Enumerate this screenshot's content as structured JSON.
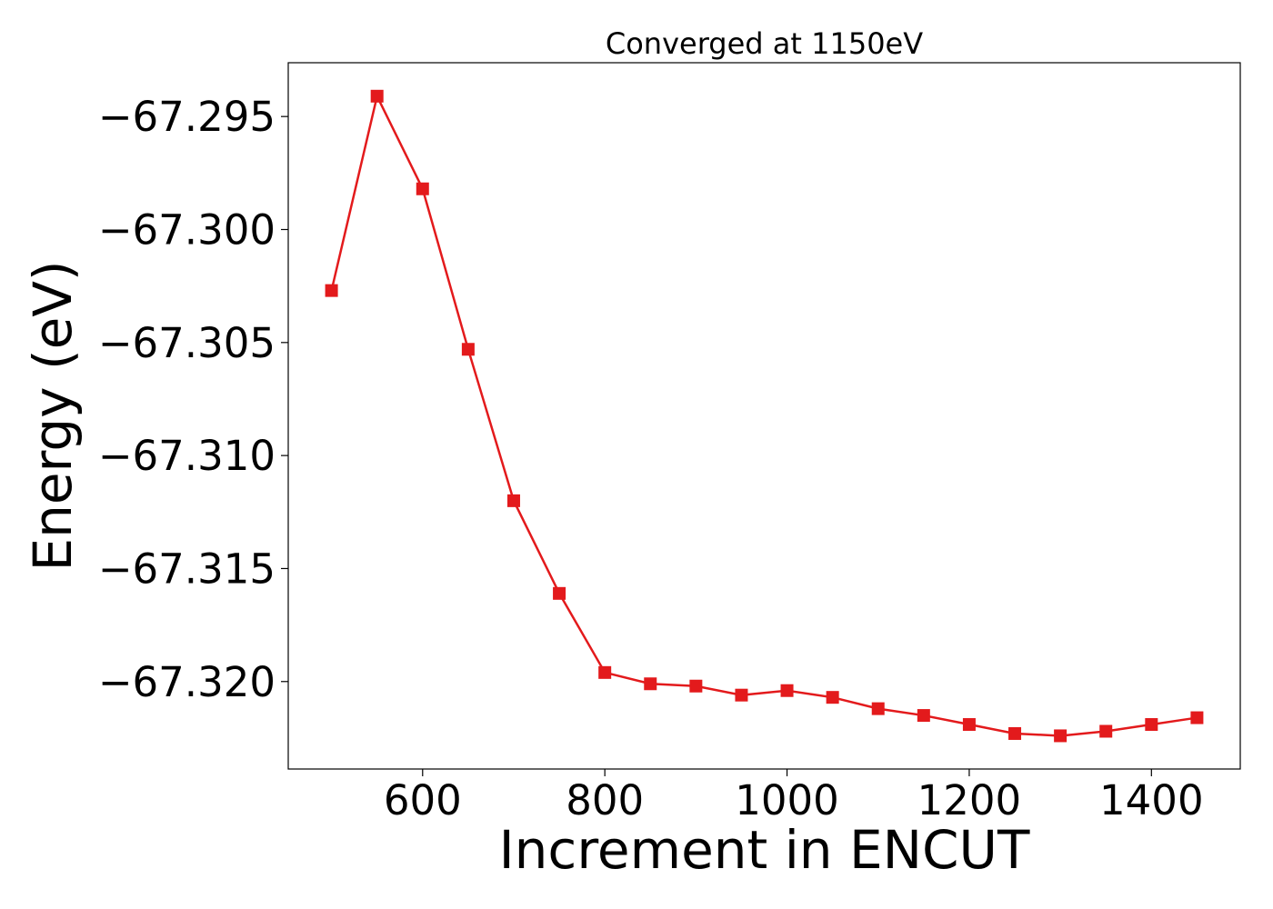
{
  "chart_data": {
    "type": "line",
    "title": "Converged at 1150eV",
    "xlabel": "Increment in ENCUT",
    "ylabel": "Energy (eV)",
    "x": [
      500,
      550,
      600,
      650,
      700,
      750,
      800,
      850,
      900,
      950,
      1000,
      1050,
      1100,
      1150,
      1200,
      1250,
      1300,
      1350,
      1400,
      1450
    ],
    "series": [
      {
        "values": [
          -67.3027,
          -67.2941,
          -67.2982,
          -67.3053,
          -67.312,
          -67.3161,
          -67.3196,
          -67.3201,
          -67.3202,
          -67.3206,
          -67.3204,
          -67.3207,
          -67.3212,
          -67.3215,
          -67.3219,
          -67.3223,
          -67.3224,
          -67.3222,
          -67.3219,
          -67.3216
        ],
        "color": "#e31a1c",
        "marker": "square"
      }
    ],
    "xlim": [
      452.5,
      1497.5
    ],
    "ylim": [
      -67.32387,
      -67.29262
    ],
    "xticks": [
      600,
      800,
      1000,
      1200,
      1400
    ],
    "xtick_labels": [
      "600",
      "800",
      "1000",
      "1200",
      "1400"
    ],
    "yticks": [
      -67.295,
      -67.3,
      -67.305,
      -67.31,
      -67.315,
      -67.32
    ],
    "ytick_labels": [
      "−67.295",
      "−67.300",
      "−67.305",
      "−67.310",
      "−67.315",
      "−67.320"
    ],
    "grid": false,
    "legend": "none"
  }
}
